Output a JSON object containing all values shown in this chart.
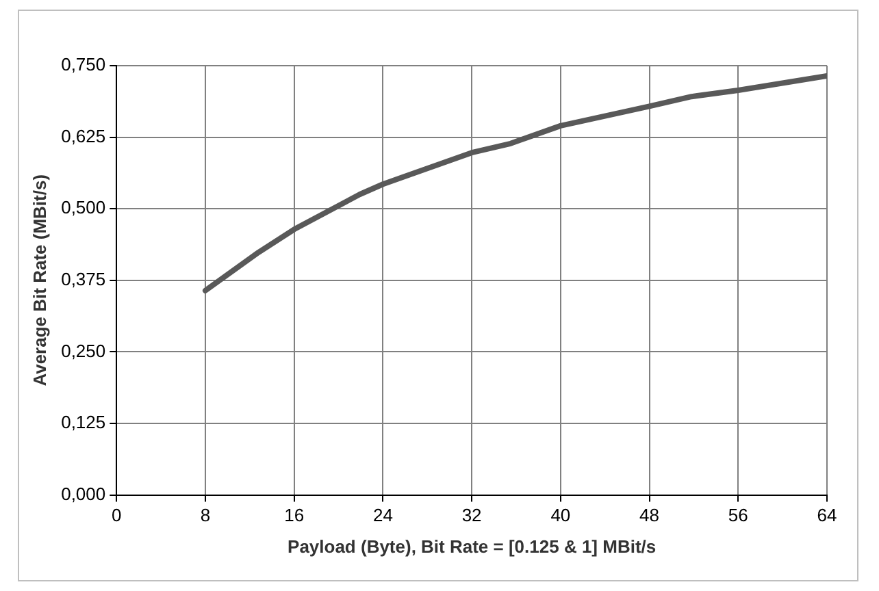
{
  "chart_data": {
    "type": "line",
    "xlabel": "Payload (Byte), Bit Rate = [0.125 & 1] MBit/s",
    "ylabel": "Average Bit Rate (MBit/s)",
    "series": [
      {
        "color": "#595959",
        "x": [
          8,
          12.8,
          16,
          21.9,
          24,
          32,
          35.5,
          40,
          48,
          51.8,
          56,
          64
        ],
        "values": [
          0.357,
          0.424,
          0.464,
          0.525,
          0.543,
          0.598,
          0.614,
          0.645,
          0.679,
          0.696,
          0.707,
          0.732
        ]
      }
    ],
    "xlim": [
      0,
      64
    ],
    "xticks": [
      0,
      8,
      16,
      24,
      32,
      40,
      48,
      56,
      64
    ],
    "ylim": [
      0,
      0.75
    ],
    "yticks": [
      {
        "value": 0,
        "label": "0,000"
      },
      {
        "value": 0.125,
        "label": "0,125"
      },
      {
        "value": 0.25,
        "label": "0,250"
      },
      {
        "value": 0.375,
        "label": "0,375"
      },
      {
        "value": 0.5,
        "label": "0,500"
      },
      {
        "value": 0.625,
        "label": "0,625"
      },
      {
        "value": 0.75,
        "label": "0,750"
      }
    ],
    "grid": true,
    "legend": false,
    "marker": "none",
    "line_style": "solid"
  }
}
